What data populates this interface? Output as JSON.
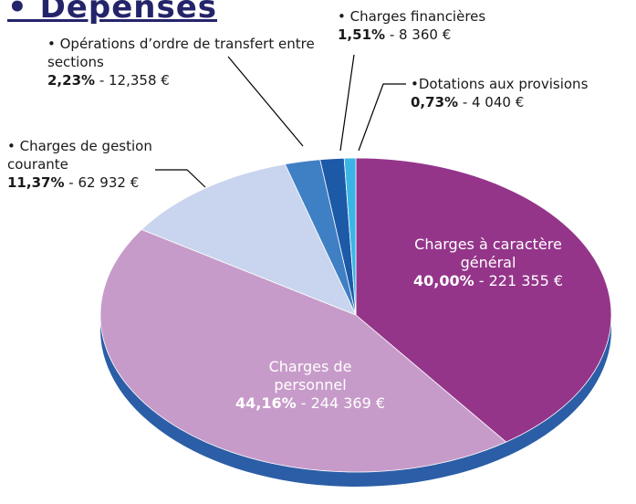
{
  "chart_data": {
    "type": "pie",
    "title": "• Dépenses",
    "categories": [
      "Charges à caractère général",
      "Charges de personnel",
      "Charges de gestion courante",
      "Opérations d’ordre de transfert entre sections",
      "Charges financières",
      "Dotations aux provisions"
    ],
    "values": [
      40.0,
      44.16,
      11.37,
      2.23,
      1.51,
      0.73
    ],
    "value_labels": [
      "40,00%",
      "44,16%",
      "11,37%",
      "2,23%",
      "1,51%",
      "0,73%"
    ],
    "amounts": [
      "221 355 €",
      "244 369 €",
      "62 932 €",
      "12,358 €",
      "8 360 €",
      "4 040 €"
    ],
    "colors": [
      "#94358a",
      "#c79bc9",
      "#c9d5ee",
      "#3f7fc4",
      "#1c5aa8",
      "#3ab5e6"
    ]
  }
}
